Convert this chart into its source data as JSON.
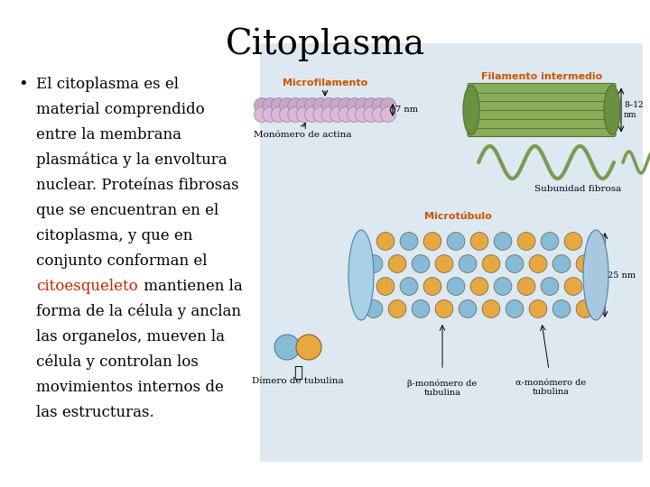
{
  "title": "Citoplasma",
  "title_fontsize": 28,
  "title_font": "serif",
  "bullet_lines": [
    {
      "text": "El citoplasma es el",
      "red": false
    },
    {
      "text": "material comprendido",
      "red": false
    },
    {
      "text": "entre la membrana",
      "red": false
    },
    {
      "text": "plasmática y la envoltura",
      "red": false
    },
    {
      "text": "nuclear. Proteínas fibrosas",
      "red": false
    },
    {
      "text": "que se encuentran en el",
      "red": false
    },
    {
      "text": "citoplasma, y que en",
      "red": false
    },
    {
      "text": "conjunto conforman el",
      "red": false
    },
    {
      "text_before": "",
      "red_word": "citoesqueleto",
      "text_after": " mantienen la",
      "red": true
    },
    {
      "text": "forma de la célula y anclan",
      "red": false
    },
    {
      "text": "las organelos, mueven la",
      "red": false
    },
    {
      "text": "célula y controlan los",
      "red": false
    },
    {
      "text": "movimientos internos de",
      "red": false
    },
    {
      "text": "las estructuras.",
      "red": false
    }
  ],
  "bullet_fontsize": 12,
  "bullet_font": "serif",
  "background_color": "#ffffff",
  "text_color": "#000000",
  "red_color": "#cc2200",
  "orange_color": "#cc5500",
  "diagram_bg": "#dde8f0",
  "microfilament_color": "#c8a8c8",
  "microfilament_dark": "#a080a0",
  "filament_color": "#8aad5a",
  "filament_dark": "#507030",
  "tubule_blue": "#88bbd8",
  "tubule_orange": "#e8a840",
  "tubule_edge": "#606040"
}
